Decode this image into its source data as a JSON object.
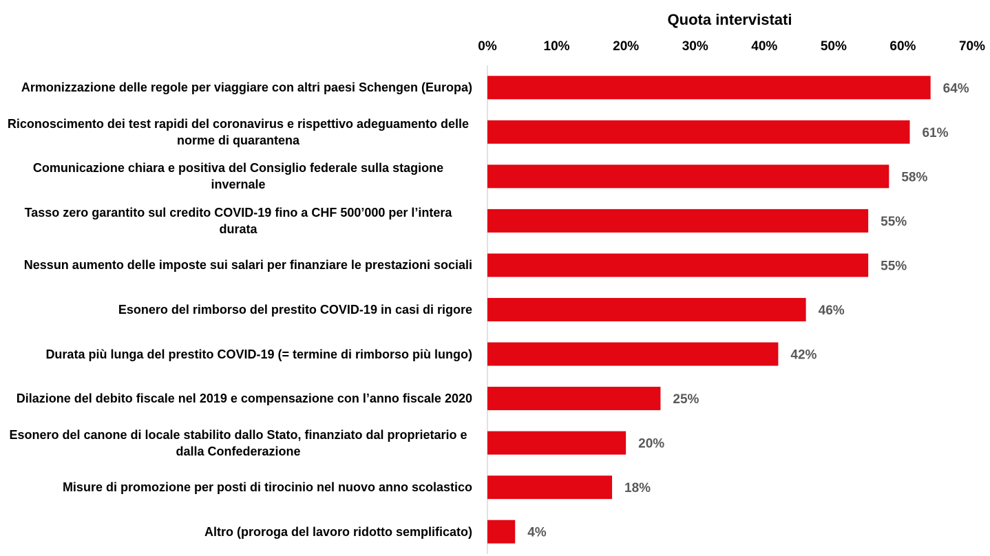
{
  "chart_data": {
    "type": "bar",
    "orientation": "horizontal",
    "x_axis_label": "Quota intervistati",
    "categories": [
      "Armonizzazione delle regole per viaggiare con altri paesi Schengen (Europa)",
      "Riconoscimento dei test rapidi del coronavirus e rispettivo adeguamento delle norme di quarantena",
      "Comunicazione chiara e positiva del Consiglio federale sulla stagione invernale",
      "Tasso zero garantito sul credito COVID-19 fino a CHF 500’000 per l’intera durata",
      "Nessun aumento delle imposte sui salari per finanziare le prestazioni sociali",
      "Esonero del rimborso del prestito COVID-19 in casi di rigore",
      "Durata più lunga del prestito COVID-19 (= termine di rimborso più lungo)",
      "Dilazione del debito fiscale nel 2019 e compensazione con l’anno fiscale 2020",
      "Esonero del canone di locale stabilito dallo Stato, finanziato dal proprietario e dalla Confederazione",
      "Misure di promozione per posti di tirocinio nel nuovo anno scolastico",
      "Altro (proroga del lavoro ridotto semplificato)"
    ],
    "values": [
      64,
      61,
      58,
      55,
      55,
      46,
      42,
      25,
      20,
      18,
      4
    ],
    "value_labels": [
      "64%",
      "61%",
      "58%",
      "55%",
      "55%",
      "46%",
      "42%",
      "25%",
      "20%",
      "18%",
      "4%"
    ],
    "color": "#e30613",
    "xlim": [
      0,
      70
    ],
    "xticks": [
      {
        "value": 0,
        "label": "0%"
      },
      {
        "value": 10,
        "label": "10%"
      },
      {
        "value": 20,
        "label": "20%"
      },
      {
        "value": 30,
        "label": "30%"
      },
      {
        "value": 40,
        "label": "40%"
      },
      {
        "value": 50,
        "label": "50%"
      },
      {
        "value": 60,
        "label": "60%"
      },
      {
        "value": 70,
        "label": "70%"
      }
    ],
    "grid": false
  }
}
